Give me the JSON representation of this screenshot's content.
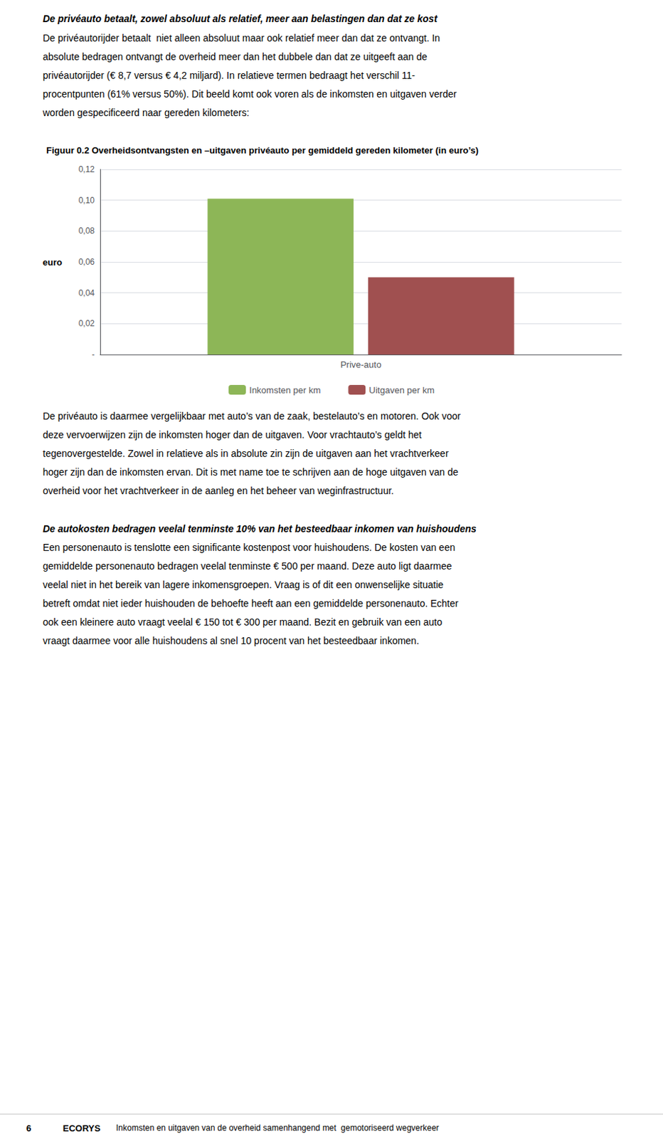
{
  "chart_data": {
    "type": "bar",
    "title": "Figuur 0.2 Overheidsontvangsten en –uitgaven privéauto per gemiddeld gereden kilometer (in euro’s)",
    "categories": [
      "Prive-auto"
    ],
    "series": [
      {
        "name": "Inkomsten per km",
        "color": "#8DB657",
        "values": [
          0.101
        ]
      },
      {
        "name": "Uitgaven per km",
        "color": "#A05050",
        "values": [
          0.05
        ]
      }
    ],
    "ylabel": "euro",
    "ylim": [
      0,
      0.12
    ],
    "yticks": [
      {
        "value": 0.0,
        "label": "-"
      },
      {
        "value": 0.02,
        "label": "0,02"
      },
      {
        "value": 0.04,
        "label": "0,04"
      },
      {
        "value": 0.06,
        "label": "0,06"
      },
      {
        "value": 0.08,
        "label": "0,08"
      },
      {
        "value": 0.1,
        "label": "0,10"
      },
      {
        "value": 0.12,
        "label": "0,12"
      }
    ],
    "grid": true,
    "legend": "bottom",
    "annotations": [
      "De privéauto betaalt, zowel absoluut als relatief, meer aan belastingen dan dat ze kost",
      "De privéautorijder betaalt  niet alleen absoluut maar ook relatief meer dan dat ze ontvangt. In",
      "absolute bedragen ontvangt de overheid meer dan het dubbele dan dat ze uitgeeft aan de",
      "privéautorijder (€ 8,7 versus € 4,2 miljard). In relatieve termen bedraagt het verschil 11-",
      "procentpunten (61% versus 50%). Dit beeld komt ook voren als de inkomsten en uitgaven verder",
      "worden gespecificeerd naar gereden kilometers:",
      "De privéauto is daarmee vergelijkbaar met auto’s van de zaak, bestelauto’s en motoren. Ook voor",
      "deze vervoerwijzen zijn de inkomsten hoger dan de uitgaven. Voor vrachtauto’s geldt het",
      "tegenovergestelde. Zowel in relatieve als in absolute zin zijn de uitgaven aan het vrachtverkeer",
      "hoger zijn dan de inkomsten ervan. Dit is met name toe te schrijven aan de hoge uitgaven van de",
      "overheid voor het vrachtverkeer in de aanleg en het beheer van weginfrastructuur.",
      "De autokosten bedragen veelal tenminste 10% van het besteedbaar inkomen van huishoudens",
      "Een personenauto is tenslotte een significante kostenpost voor huishoudens. De kosten van een",
      "gemiddelde personenauto bedragen veelal tenminste € 500 per maand. Deze auto ligt daarmee",
      "veelal niet in het bereik van lagere inkomensgroepen. Vraag is of dit een onwenselijke situatie",
      "betreft omdat niet ieder huishouden de behoefte heeft aan een gemiddelde personenauto. Echter",
      "ook een kleinere auto vraagt veelal € 150 tot € 300 per maand. Bezit en gebruik van een auto",
      "vraagt daarmee voor alle huishoudens al snel 10 procent van het besteedbaar inkomen.",
      "6",
      "ECORYS",
      "Inkomsten en uitgaven van de overheid samenhangend met  gemotoriseerd wegverkeer"
    ]
  }
}
